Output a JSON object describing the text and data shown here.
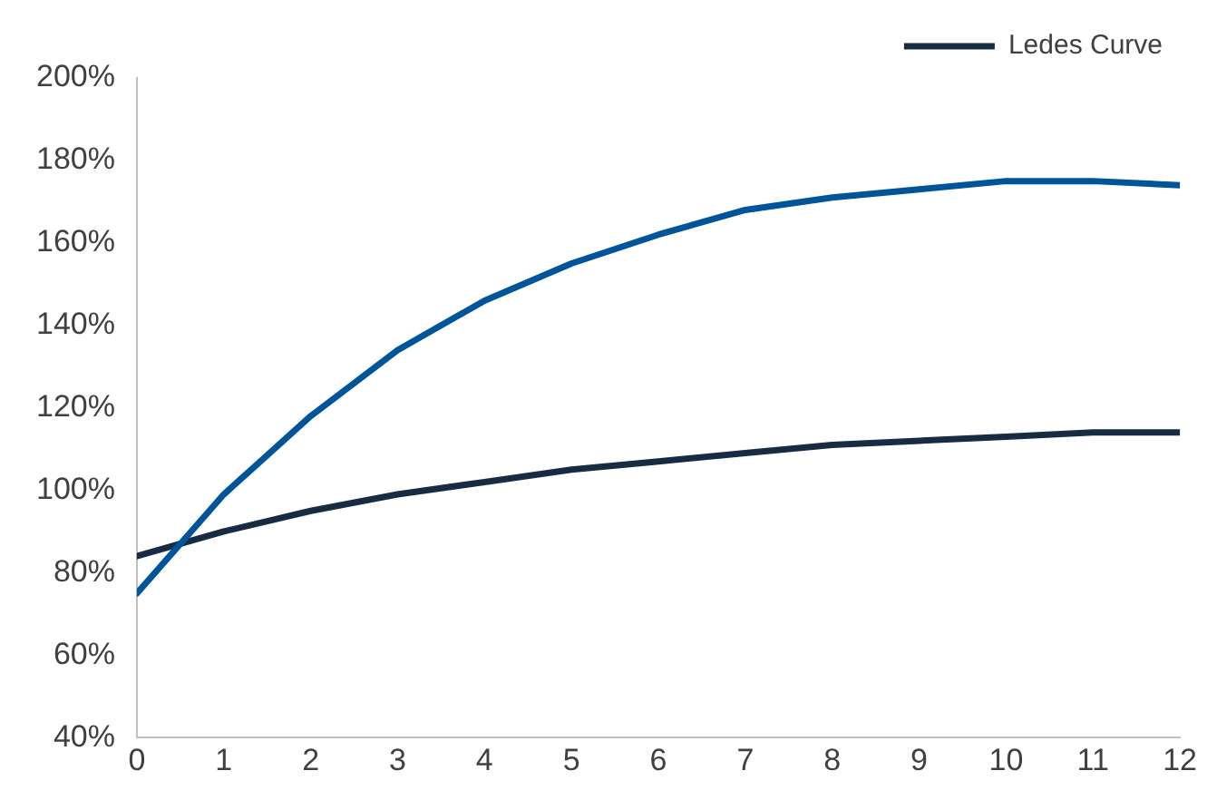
{
  "chart_data": {
    "type": "line",
    "x": [
      0,
      1,
      2,
      3,
      4,
      5,
      6,
      7,
      8,
      9,
      10,
      11,
      12
    ],
    "series": [
      {
        "color": "#00549a",
        "values": [
          75,
          99,
          118,
          134,
          146,
          155,
          162,
          168,
          171,
          173,
          175,
          175,
          174
        ]
      },
      {
        "name": "Ledes Curve",
        "color": "#172b43",
        "values": [
          84,
          90,
          95,
          99,
          102,
          105,
          107,
          109,
          111,
          112,
          113,
          114,
          114
        ]
      }
    ],
    "xlim": [
      0,
      12
    ],
    "xticks": [
      0,
      1,
      2,
      3,
      4,
      5,
      6,
      7,
      8,
      9,
      10,
      11,
      12
    ],
    "ylim": [
      40,
      200
    ],
    "yticks": [
      {
        "value": 40,
        "label": "40%"
      },
      {
        "value": 60,
        "label": "60%"
      },
      {
        "value": 80,
        "label": "80%"
      },
      {
        "value": 100,
        "label": "100%"
      },
      {
        "value": 120,
        "label": "120%"
      },
      {
        "value": 140,
        "label": "140%"
      },
      {
        "value": 160,
        "label": "160%"
      },
      {
        "value": 180,
        "label": "180%"
      },
      {
        "value": 200,
        "label": "200%"
      }
    ],
    "grid": false,
    "legend": "top right",
    "marker": "none",
    "line_style": "solid"
  }
}
